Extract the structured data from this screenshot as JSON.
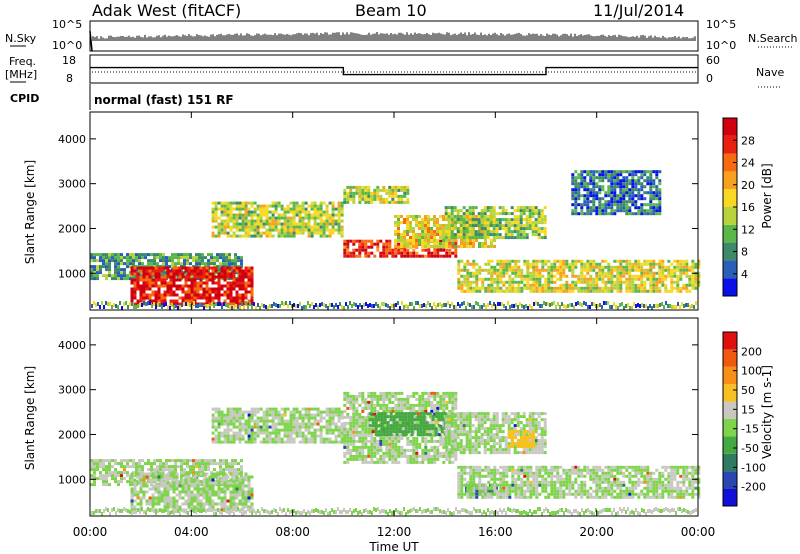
{
  "header": {
    "radar": "Adak West (fitACF)",
    "beam": "Beam 10",
    "date": "11/Jul/2014"
  },
  "nsky_panel": {
    "left_label": "N.Sky",
    "right_label": "N.Search",
    "left_ticks": [
      "10^5",
      "10^0"
    ],
    "right_ticks": [
      "10^5",
      "10^0"
    ]
  },
  "freq_panel": {
    "left_label_top": "Freq.",
    "left_label_bottom": "[MHz]",
    "left_ticks": [
      "18",
      "8"
    ],
    "right_label": "Nave",
    "right_ticks": [
      "60",
      "0"
    ]
  },
  "cpid": {
    "label": "CPID",
    "text": "normal (fast) 151 RF"
  },
  "colors": {
    "power_bar": [
      "#0a10e8",
      "#2a5fb8",
      "#3c8a6a",
      "#5ab84a",
      "#b8d23c",
      "#f8d820",
      "#f8a020",
      "#f86a10",
      "#e82010",
      "#d00010"
    ],
    "velocity_bar": [
      "#1010d8",
      "#2a46b0",
      "#2f7a60",
      "#46a842",
      "#7ed44a",
      "#c8c8c0",
      "#f8c020",
      "#f89018",
      "#f05810",
      "#e01010"
    ]
  },
  "chart_data": [
    {
      "type": "heatmap",
      "name": "power",
      "ylabel": "Slant Range [km]",
      "ylim": [
        180,
        4600
      ],
      "yticks": [
        "1000",
        "2000",
        "3000",
        "4000"
      ],
      "xlim": [
        "00:00",
        "24:00"
      ],
      "xticks": [
        "00:00",
        "04:00",
        "08:00",
        "12:00",
        "16:00",
        "20:00",
        "00:00"
      ],
      "colorbar": {
        "label": "Power [dB]",
        "range": [
          0,
          32
        ],
        "ticks": [
          "4",
          "8",
          "12",
          "16",
          "20",
          "24",
          "28"
        ]
      },
      "regions": [
        {
          "t0": 0.0,
          "t1": 6.0,
          "r0": 900,
          "r1": 1450,
          "level": 0.28
        },
        {
          "t0": 1.6,
          "t1": 6.4,
          "r0": 300,
          "r1": 1150,
          "level": 0.9
        },
        {
          "t0": 4.8,
          "t1": 10.0,
          "r0": 1850,
          "r1": 2600,
          "level": 0.45
        },
        {
          "t0": 10.0,
          "t1": 12.5,
          "r0": 2600,
          "r1": 2950,
          "level": 0.45
        },
        {
          "t0": 10.0,
          "t1": 14.5,
          "r0": 1400,
          "r1": 1750,
          "level": 0.85
        },
        {
          "t0": 12.0,
          "t1": 16.0,
          "r0": 1600,
          "r1": 2300,
          "level": 0.55
        },
        {
          "t0": 14.0,
          "t1": 18.0,
          "r0": 1800,
          "r1": 2500,
          "level": 0.4
        },
        {
          "t0": 14.5,
          "t1": 24.0,
          "r0": 600,
          "r1": 1300,
          "level": 0.5
        },
        {
          "t0": 19.0,
          "t1": 22.5,
          "r0": 2300,
          "r1": 3300,
          "level": 0.2
        }
      ]
    },
    {
      "type": "heatmap",
      "name": "velocity",
      "ylabel": "Slant Range [km]",
      "ylim": [
        180,
        4600
      ],
      "yticks": [
        "1000",
        "2000",
        "3000",
        "4000"
      ],
      "xlabel": "Time UT",
      "xlim": [
        "00:00",
        "24:00"
      ],
      "xticks": [
        "00:00",
        "04:00",
        "08:00",
        "12:00",
        "16:00",
        "20:00",
        "00:00"
      ],
      "colorbar": {
        "label": "Velocity [m s-1]",
        "range": [
          -250,
          250
        ],
        "ticks": [
          "200",
          "100",
          "50",
          "15",
          "-15",
          "-50",
          "-100",
          "-200"
        ]
      },
      "regions": [
        {
          "t0": 0.0,
          "t1": 6.0,
          "r0": 900,
          "r1": 1450,
          "level": 0.5
        },
        {
          "t0": 1.6,
          "t1": 6.4,
          "r0": 300,
          "r1": 1150,
          "level": 0.5
        },
        {
          "t0": 4.8,
          "t1": 10.0,
          "r0": 1850,
          "r1": 2600,
          "level": 0.5
        },
        {
          "t0": 10.0,
          "t1": 14.5,
          "r0": 1400,
          "r1": 2950,
          "level": 0.5
        },
        {
          "t0": 11.0,
          "t1": 14.0,
          "r0": 2000,
          "r1": 2500,
          "level": 0.35
        },
        {
          "t0": 14.0,
          "t1": 18.0,
          "r0": 1600,
          "r1": 2500,
          "level": 0.5
        },
        {
          "t0": 14.8,
          "t1": 16.0,
          "r0": 650,
          "r1": 900,
          "level": 0.2
        },
        {
          "t0": 14.5,
          "t1": 24.0,
          "r0": 600,
          "r1": 1300,
          "level": 0.5
        },
        {
          "t0": 16.5,
          "t1": 17.5,
          "r0": 1700,
          "r1": 2100,
          "level": 0.65
        }
      ]
    }
  ]
}
